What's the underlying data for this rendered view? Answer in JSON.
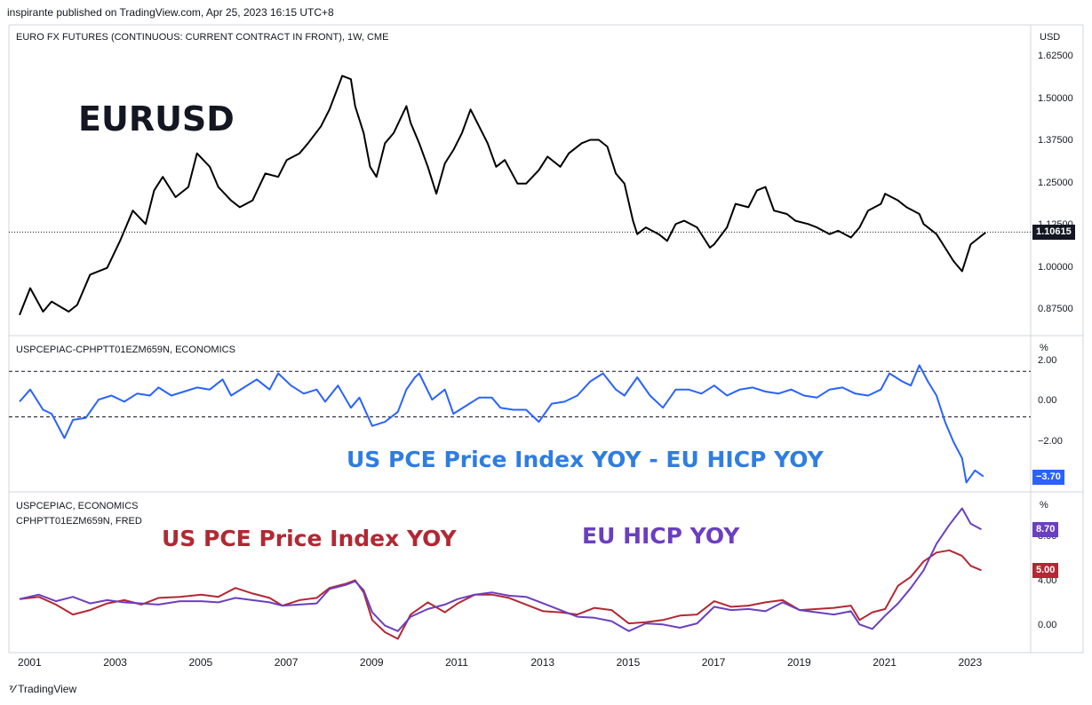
{
  "header": {
    "publisher": "inspirante published on TradingView.com, Apr 25, 2023 16:15 UTC+8"
  },
  "footer": {
    "brand": "TradingView"
  },
  "chart_data": [
    {
      "type": "line",
      "pane_title": "EURO FX FUTURES (CONTINUOUS: CURRENT CONTRACT IN FRONT), 1W, CME",
      "annotation": "EURUSD",
      "currency": "USD",
      "ylim": [
        0.82,
        1.65
      ],
      "y_ticks": [
        0.875,
        1.0,
        1.125,
        1.25,
        1.375,
        1.5,
        1.625
      ],
      "y_tick_labels": [
        "0.87500",
        "1.00000",
        "1.12500",
        "1.25000",
        "1.37500",
        "1.50000",
        "1.62500"
      ],
      "last_value": 1.10615,
      "last_value_label": "1.10615",
      "line_color": "#000000",
      "x": [
        2000.75,
        2001.0,
        2001.3,
        2001.5,
        2001.9,
        2002.1,
        2002.4,
        2002.8,
        2003.1,
        2003.4,
        2003.7,
        2003.9,
        2004.1,
        2004.4,
        2004.7,
        2004.9,
        2005.2,
        2005.4,
        2005.7,
        2005.9,
        2006.2,
        2006.5,
        2006.8,
        2007.0,
        2007.3,
        2007.5,
        2007.8,
        2008.0,
        2008.3,
        2008.5,
        2008.6,
        2008.8,
        2008.95,
        2009.1,
        2009.3,
        2009.5,
        2009.8,
        2009.9,
        2010.1,
        2010.3,
        2010.5,
        2010.7,
        2010.9,
        2011.1,
        2011.3,
        2011.5,
        2011.7,
        2011.9,
        2012.1,
        2012.4,
        2012.6,
        2012.9,
        2013.1,
        2013.4,
        2013.6,
        2013.9,
        2014.1,
        2014.3,
        2014.5,
        2014.7,
        2014.9,
        2015.1,
        2015.2,
        2015.4,
        2015.7,
        2015.9,
        2016.1,
        2016.3,
        2016.6,
        2016.9,
        2017.0,
        2017.3,
        2017.5,
        2017.8,
        2018.0,
        2018.2,
        2018.4,
        2018.7,
        2018.9,
        2019.2,
        2019.4,
        2019.7,
        2019.9,
        2020.2,
        2020.4,
        2020.6,
        2020.9,
        2021.0,
        2021.3,
        2021.5,
        2021.8,
        2021.9,
        2022.2,
        2022.4,
        2022.6,
        2022.8,
        2023.0,
        2023.2,
        2023.35
      ],
      "y": [
        0.86,
        0.94,
        0.87,
        0.9,
        0.87,
        0.89,
        0.98,
        1.0,
        1.08,
        1.17,
        1.13,
        1.23,
        1.27,
        1.21,
        1.24,
        1.34,
        1.3,
        1.24,
        1.2,
        1.18,
        1.2,
        1.28,
        1.27,
        1.32,
        1.34,
        1.37,
        1.42,
        1.47,
        1.57,
        1.56,
        1.48,
        1.4,
        1.3,
        1.27,
        1.37,
        1.4,
        1.48,
        1.43,
        1.37,
        1.3,
        1.22,
        1.31,
        1.35,
        1.4,
        1.47,
        1.42,
        1.37,
        1.3,
        1.32,
        1.25,
        1.25,
        1.29,
        1.33,
        1.3,
        1.34,
        1.37,
        1.38,
        1.38,
        1.36,
        1.28,
        1.25,
        1.14,
        1.1,
        1.12,
        1.1,
        1.08,
        1.13,
        1.14,
        1.12,
        1.06,
        1.07,
        1.12,
        1.19,
        1.18,
        1.23,
        1.24,
        1.17,
        1.16,
        1.14,
        1.13,
        1.12,
        1.1,
        1.11,
        1.09,
        1.12,
        1.17,
        1.19,
        1.22,
        1.2,
        1.18,
        1.16,
        1.13,
        1.1,
        1.06,
        1.02,
        0.99,
        1.07,
        1.09,
        1.105
      ]
    },
    {
      "type": "line",
      "pane_title": "USPCEPIAC-CPHPTT01EZM659N, ECONOMICS",
      "annotation": "US PCE Price Index YOY - EU HICP YOY",
      "unit": "%",
      "ylim": [
        -4.2,
        2.3
      ],
      "y_ticks": [
        -2.0,
        0.0,
        2.0
      ],
      "y_tick_labels": [
        "−2.00",
        "0.00",
        "2.00"
      ],
      "last_value": -3.7,
      "last_value_label": "−3.70",
      "line_color": "#2962ff",
      "x": [
        2000.75,
        2001.0,
        2001.3,
        2001.5,
        2001.8,
        2002.0,
        2002.3,
        2002.6,
        2002.9,
        2003.2,
        2003.5,
        2003.8,
        2004.0,
        2004.3,
        2004.6,
        2004.9,
        2005.2,
        2005.5,
        2005.7,
        2006.0,
        2006.3,
        2006.6,
        2006.8,
        2007.1,
        2007.4,
        2007.7,
        2007.9,
        2008.2,
        2008.5,
        2008.7,
        2009.0,
        2009.3,
        2009.6,
        2009.8,
        2010.0,
        2010.1,
        2010.4,
        2010.7,
        2010.9,
        2011.2,
        2011.5,
        2011.8,
        2012.0,
        2012.3,
        2012.6,
        2012.9,
        2013.2,
        2013.5,
        2013.8,
        2014.1,
        2014.4,
        2014.7,
        2014.9,
        2015.2,
        2015.5,
        2015.8,
        2016.1,
        2016.4,
        2016.7,
        2017.0,
        2017.3,
        2017.6,
        2017.9,
        2018.2,
        2018.5,
        2018.8,
        2019.1,
        2019.4,
        2019.7,
        2020.0,
        2020.3,
        2020.6,
        2020.9,
        2021.1,
        2021.4,
        2021.6,
        2021.8,
        2022.0,
        2022.2,
        2022.4,
        2022.6,
        2022.8,
        2022.9,
        2023.1,
        2023.3
      ],
      "y": [
        0.0,
        0.6,
        -0.4,
        -0.6,
        -1.8,
        -0.9,
        -0.8,
        0.1,
        0.3,
        0.0,
        0.4,
        0.3,
        0.7,
        0.3,
        0.5,
        0.7,
        0.6,
        1.1,
        0.3,
        0.7,
        1.1,
        0.6,
        1.4,
        0.8,
        0.4,
        0.6,
        0.0,
        0.8,
        -0.3,
        0.2,
        -1.2,
        -1.0,
        -0.5,
        0.6,
        1.2,
        1.4,
        0.1,
        0.6,
        -0.6,
        -0.2,
        0.2,
        0.2,
        -0.3,
        -0.4,
        -0.4,
        -1.0,
        -0.1,
        0.0,
        0.3,
        1.0,
        1.4,
        0.6,
        0.3,
        1.2,
        0.3,
        -0.3,
        0.6,
        0.6,
        0.4,
        0.8,
        0.3,
        0.6,
        0.7,
        0.5,
        0.4,
        0.6,
        0.3,
        0.2,
        0.6,
        0.7,
        0.4,
        0.3,
        0.6,
        1.4,
        1.0,
        0.8,
        1.8,
        1.0,
        0.3,
        -1.0,
        -2.0,
        -2.8,
        -4.0,
        -3.4,
        -3.7
      ]
    },
    {
      "type": "line",
      "pane_title_lines": [
        "USPCEPIAC, ECONOMICS",
        "CPHPTT01EZM659N, FRED"
      ],
      "annotations": [
        "US PCE Price Index YOY",
        "EU HICP YOY"
      ],
      "unit": "%",
      "ylim": [
        -1.4,
        10.8
      ],
      "y_ticks": [
        0.0,
        4.0,
        8.0
      ],
      "y_tick_labels": [
        "0.00",
        "4.00",
        "8.00"
      ],
      "x_ticks": [
        2001,
        2003,
        2005,
        2007,
        2009,
        2011,
        2013,
        2015,
        2017,
        2019,
        2021,
        2023
      ],
      "series": [
        {
          "name": "US PCE Price Index YOY",
          "color": "#b22833",
          "last_value": 5.0,
          "last_value_label": "5.00",
          "x": [
            2000.75,
            2001.2,
            2001.6,
            2002.0,
            2002.4,
            2002.8,
            2003.2,
            2003.6,
            2004.0,
            2004.5,
            2005.0,
            2005.4,
            2005.8,
            2006.2,
            2006.6,
            2006.9,
            2007.3,
            2007.7,
            2008.0,
            2008.4,
            2008.6,
            2008.8,
            2009.0,
            2009.3,
            2009.6,
            2009.9,
            2010.3,
            2010.7,
            2011.0,
            2011.4,
            2011.8,
            2012.2,
            2012.6,
            2013.0,
            2013.4,
            2013.8,
            2014.2,
            2014.6,
            2015.0,
            2015.4,
            2015.8,
            2016.2,
            2016.6,
            2017.0,
            2017.4,
            2017.8,
            2018.2,
            2018.6,
            2019.0,
            2019.4,
            2019.8,
            2020.2,
            2020.4,
            2020.7,
            2021.0,
            2021.3,
            2021.6,
            2021.9,
            2022.2,
            2022.5,
            2022.8,
            2023.0,
            2023.25
          ],
          "y": [
            2.4,
            2.6,
            1.9,
            1.0,
            1.4,
            2.0,
            2.3,
            1.9,
            2.5,
            2.6,
            2.8,
            2.6,
            3.4,
            2.9,
            2.5,
            1.8,
            2.3,
            2.5,
            3.4,
            3.8,
            4.1,
            3.0,
            0.5,
            -0.6,
            -1.2,
            1.0,
            2.1,
            1.2,
            2.0,
            2.8,
            2.8,
            2.5,
            1.9,
            1.3,
            1.2,
            1.0,
            1.6,
            1.4,
            0.2,
            0.3,
            0.5,
            0.9,
            1.0,
            2.2,
            1.7,
            1.8,
            2.1,
            2.3,
            1.4,
            1.5,
            1.6,
            1.8,
            0.5,
            1.2,
            1.5,
            3.6,
            4.4,
            5.8,
            6.6,
            6.8,
            6.3,
            5.4,
            5.0
          ]
        },
        {
          "name": "EU HICP YOY",
          "color": "#6b3fbf",
          "last_value": 8.7,
          "last_value_label": "8.70",
          "x": [
            2000.75,
            2001.2,
            2001.6,
            2002.0,
            2002.4,
            2002.8,
            2003.2,
            2003.6,
            2004.0,
            2004.5,
            2005.0,
            2005.4,
            2005.8,
            2006.2,
            2006.6,
            2006.9,
            2007.3,
            2007.7,
            2008.0,
            2008.4,
            2008.6,
            2008.8,
            2009.0,
            2009.3,
            2009.6,
            2009.9,
            2010.3,
            2010.7,
            2011.0,
            2011.4,
            2011.8,
            2012.2,
            2012.6,
            2013.0,
            2013.4,
            2013.8,
            2014.2,
            2014.6,
            2015.0,
            2015.4,
            2015.8,
            2016.2,
            2016.6,
            2017.0,
            2017.4,
            2017.8,
            2018.2,
            2018.6,
            2019.0,
            2019.4,
            2019.8,
            2020.2,
            2020.4,
            2020.7,
            2021.0,
            2021.3,
            2021.6,
            2021.9,
            2022.2,
            2022.5,
            2022.8,
            2023.0,
            2023.25
          ],
          "y": [
            2.4,
            2.8,
            2.2,
            2.6,
            2.0,
            2.3,
            2.1,
            2.0,
            1.9,
            2.2,
            2.2,
            2.1,
            2.5,
            2.3,
            2.1,
            1.8,
            1.9,
            2.0,
            3.3,
            3.7,
            4.0,
            3.2,
            1.2,
            0.0,
            -0.5,
            0.8,
            1.5,
            1.9,
            2.4,
            2.8,
            3.0,
            2.7,
            2.6,
            2.0,
            1.4,
            0.8,
            0.7,
            0.4,
            -0.5,
            0.2,
            0.1,
            -0.2,
            0.2,
            1.7,
            1.4,
            1.5,
            1.3,
            2.1,
            1.4,
            1.2,
            1.0,
            1.3,
            0.1,
            -0.3,
            0.9,
            2.0,
            3.4,
            5.0,
            7.4,
            9.1,
            10.6,
            9.2,
            8.7
          ]
        }
      ]
    }
  ]
}
